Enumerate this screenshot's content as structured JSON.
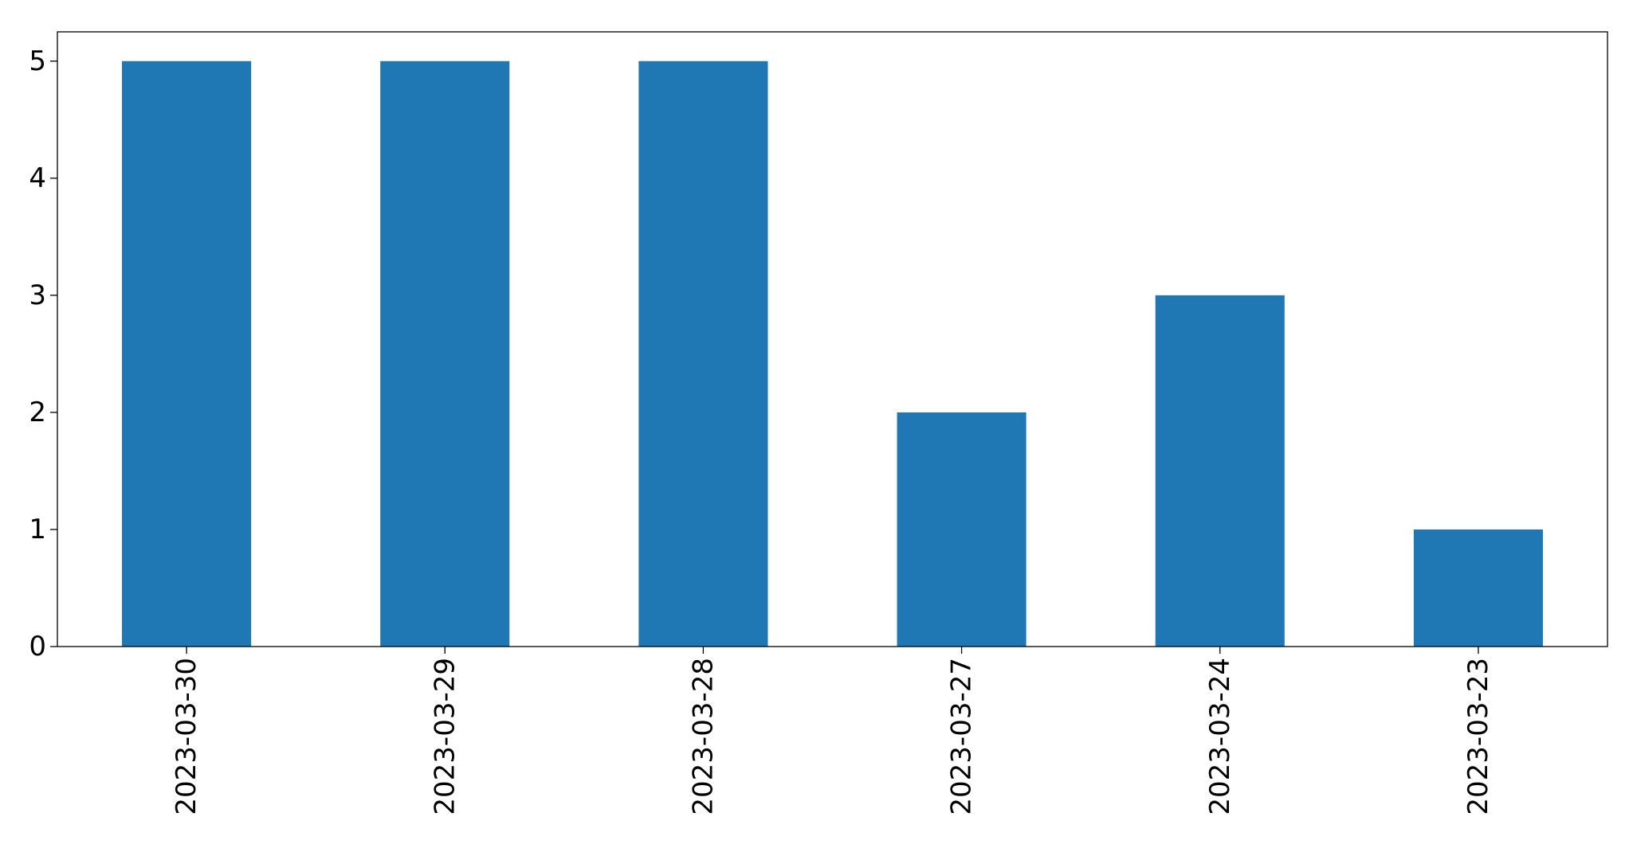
{
  "chart_data": {
    "type": "bar",
    "title": "",
    "xlabel": "",
    "ylabel": "",
    "categories": [
      "2023-03-30",
      "2023-03-29",
      "2023-03-28",
      "2023-03-27",
      "2023-03-24",
      "2023-03-23"
    ],
    "values": [
      5,
      5,
      5,
      2,
      3,
      1
    ],
    "ylim": [
      0,
      5.25
    ],
    "yticks": [
      "0",
      "1",
      "2",
      "3",
      "4",
      "5"
    ],
    "bar_color": "#1f77b4",
    "grid": false,
    "legend": "none"
  }
}
